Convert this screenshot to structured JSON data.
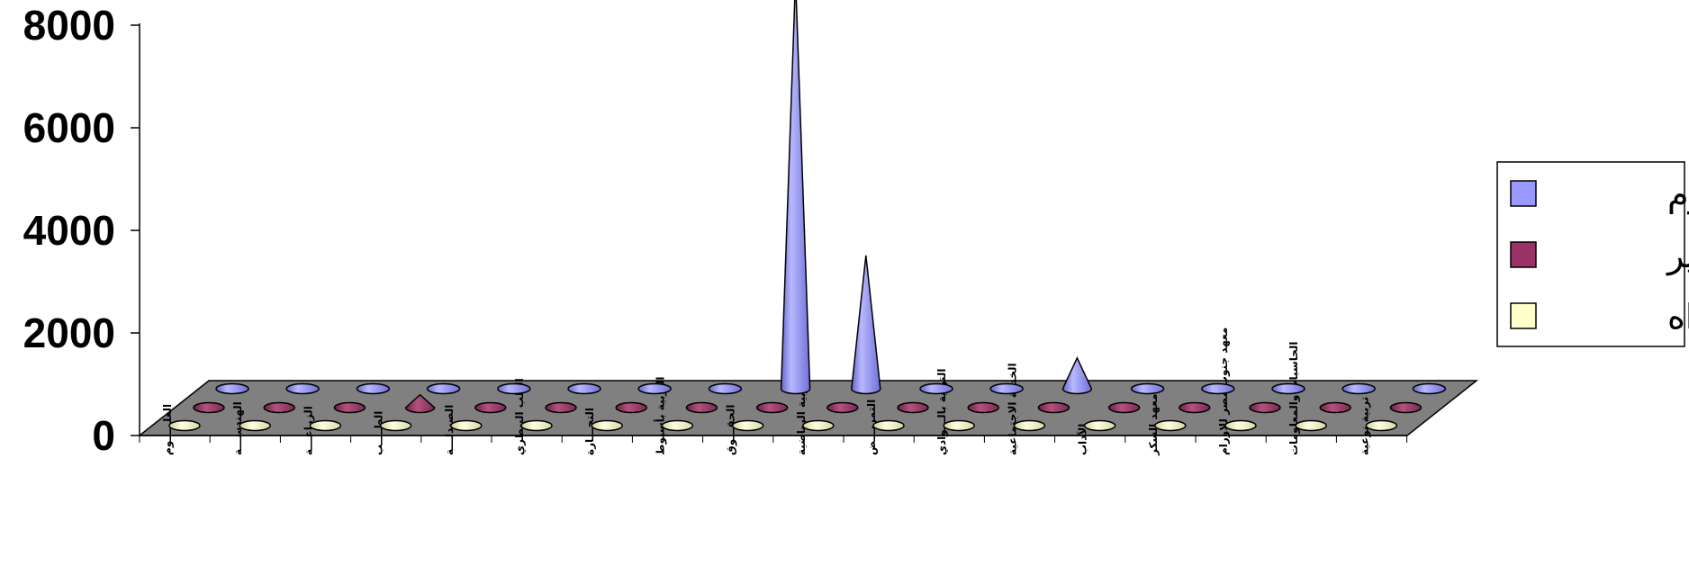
{
  "chart_data": {
    "type": "bar",
    "style": "3d-cone",
    "ylim": [
      0,
      8000
    ],
    "y_ticks": [
      "0",
      "2000",
      "4000",
      "6000",
      "8000"
    ],
    "categories": [
      "العلـــــوم",
      "الهندســـة",
      "الزراعـــة",
      "الطــــب",
      "الصيدلـــة",
      "الطب البيطري",
      "التجـــارة",
      "التربية بأسيوط",
      "الحقـــوق",
      "التربية الرياضية",
      "التمريـــض",
      "التربية بالـــوادي",
      "الخدمة الاجتماعية",
      "الآداب",
      "معهد السكر",
      "معهد جنوب مصر للاورام",
      "الحاسبات والمعلومات",
      "تربية نوعية"
    ],
    "series": [
      {
        "name": "دبلـوم",
        "color": "#9999ff",
        "values": [
          0,
          0,
          0,
          0,
          0,
          0,
          0,
          0,
          8000,
          2600,
          0,
          0,
          600,
          0,
          0,
          0,
          0,
          0
        ]
      },
      {
        "name": "ماجستير",
        "color": "#993366",
        "values": [
          0,
          0,
          0,
          250,
          0,
          0,
          0,
          0,
          0,
          0,
          0,
          0,
          0,
          0,
          0,
          0,
          0,
          0
        ]
      },
      {
        "name": "دكتوراه",
        "color": "#ffffcc",
        "values": [
          0,
          0,
          0,
          0,
          0,
          0,
          0,
          0,
          0,
          0,
          0,
          0,
          0,
          0,
          0,
          0,
          0,
          0
        ]
      }
    ],
    "legend_position": "right",
    "floor_color": "#808080",
    "grid": false
  }
}
